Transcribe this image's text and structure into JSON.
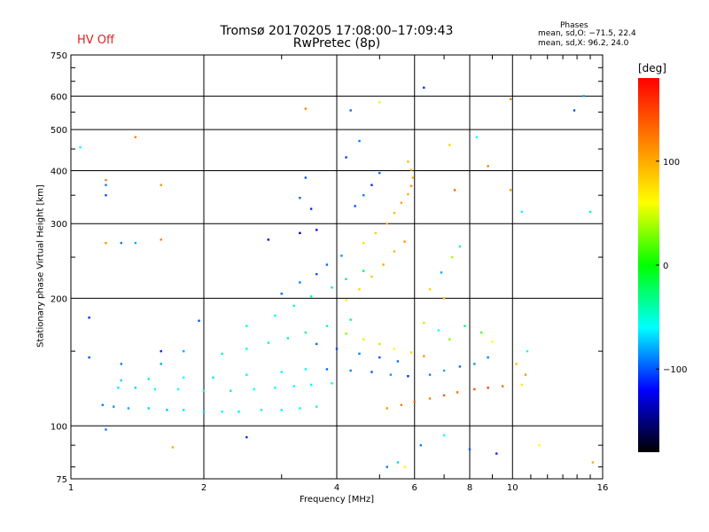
{
  "header": {
    "title_line1": "Tromsø 20170205 17:08:00–17:09:43",
    "title_line2": "RwPretec (8p)",
    "status": "HV Off",
    "phases_title": "Phases",
    "stat_o": "mean, sd,O: −71.5, 22.4",
    "stat_x": "mean, sd,X:  96.2, 24.0"
  },
  "colors": {
    "status": "#dd2222",
    "colorbar_stops": [
      "#ff0000",
      "#ff8000",
      "#ffff00",
      "#00ff00",
      "#00ffff",
      "#0000ff",
      "#000000"
    ]
  },
  "chart_data": {
    "type": "scatter",
    "xlabel": "Frequency [MHz]",
    "ylabel": "Stationary phase Virtual Height [km]",
    "x_scale": "log",
    "y_scale": "log",
    "xlim": [
      1,
      16
    ],
    "ylim": [
      75,
      750
    ],
    "x_ticks": [
      1,
      2,
      4,
      6,
      8,
      10,
      16
    ],
    "x_tick_labels": [
      "1",
      "2",
      "4",
      "6",
      "8",
      "10",
      "16"
    ],
    "y_ticks": [
      75,
      100,
      200,
      300,
      400,
      500,
      600,
      750
    ],
    "y_tick_labels": [
      "75",
      "100",
      "200",
      "300",
      "400",
      "500",
      "600",
      "750"
    ],
    "grid": true,
    "colorbar": {
      "unit": "[deg]",
      "range": [
        -180,
        180
      ],
      "ticks": [
        100,
        0,
        -100
      ],
      "tick_labels": [
        "100",
        "0",
        "−100"
      ]
    },
    "series": [
      {
        "points": [
          [
            1.18,
            112,
            -90
          ],
          [
            1.25,
            111,
            -85
          ],
          [
            1.35,
            110,
            -80
          ],
          [
            1.5,
            110,
            -70
          ],
          [
            1.65,
            109,
            -75
          ],
          [
            1.8,
            109,
            -65
          ],
          [
            2.0,
            108,
            -70
          ],
          [
            2.2,
            108,
            -60
          ],
          [
            2.4,
            108,
            -65
          ],
          [
            2.7,
            109,
            -55
          ],
          [
            3.0,
            109,
            -60
          ],
          [
            3.3,
            110,
            -55
          ],
          [
            3.6,
            111,
            -50
          ],
          [
            1.28,
            123,
            -65
          ],
          [
            1.4,
            123,
            -70
          ],
          [
            1.55,
            122,
            -60
          ],
          [
            1.75,
            122,
            -60
          ],
          [
            2.0,
            121,
            -55
          ],
          [
            2.3,
            121,
            -65
          ],
          [
            2.6,
            122,
            -60
          ],
          [
            2.9,
            123,
            -55
          ],
          [
            3.2,
            124,
            -60
          ],
          [
            3.5,
            125,
            -50
          ],
          [
            3.9,
            126,
            -55
          ],
          [
            1.3,
            128,
            -70
          ],
          [
            1.5,
            129,
            -65
          ],
          [
            1.8,
            130,
            -60
          ],
          [
            2.1,
            130,
            -65
          ],
          [
            2.5,
            132,
            -55
          ],
          [
            3.0,
            134,
            -60
          ],
          [
            3.4,
            136,
            -55
          ],
          [
            2.2,
            148,
            -45
          ],
          [
            2.5,
            152,
            -50
          ],
          [
            2.8,
            157,
            -45
          ],
          [
            3.1,
            161,
            -40
          ],
          [
            3.4,
            166,
            -35
          ],
          [
            3.8,
            172,
            -40
          ],
          [
            4.3,
            178,
            -30
          ],
          [
            2.5,
            172,
            -55
          ],
          [
            2.9,
            182,
            -50
          ],
          [
            3.2,
            192,
            -45
          ],
          [
            3.5,
            202,
            -40
          ],
          [
            3.9,
            212,
            -35
          ],
          [
            4.2,
            222,
            -30
          ],
          [
            4.6,
            232,
            -20
          ],
          [
            3.0,
            205,
            -95
          ],
          [
            3.3,
            218,
            -90
          ],
          [
            3.6,
            228,
            -100
          ],
          [
            3.8,
            240,
            -95
          ],
          [
            4.1,
            252,
            -85
          ],
          [
            3.8,
            136,
            -95
          ],
          [
            4.3,
            135,
            -90
          ],
          [
            4.8,
            134,
            -100
          ],
          [
            5.3,
            132,
            -85
          ],
          [
            5.8,
            131,
            -110
          ],
          [
            3.6,
            156,
            -95
          ],
          [
            4.0,
            152,
            -105
          ],
          [
            4.5,
            148,
            -90
          ],
          [
            5.0,
            145,
            -100
          ],
          [
            5.5,
            142,
            -95
          ],
          [
            4.2,
            165,
            30
          ],
          [
            4.6,
            160,
            50
          ],
          [
            5.0,
            156,
            40
          ],
          [
            5.4,
            152,
            60
          ],
          [
            5.9,
            149,
            80
          ],
          [
            6.3,
            146,
            110
          ],
          [
            4.2,
            198,
            70
          ],
          [
            4.5,
            210,
            80
          ],
          [
            4.8,
            225,
            90
          ],
          [
            5.1,
            240,
            100
          ],
          [
            5.4,
            258,
            95
          ],
          [
            5.7,
            272,
            110
          ],
          [
            4.6,
            270,
            75
          ],
          [
            4.9,
            285,
            85
          ],
          [
            5.2,
            300,
            90
          ],
          [
            5.4,
            318,
            95
          ],
          [
            5.6,
            336,
            105
          ],
          [
            5.8,
            352,
            100
          ],
          [
            5.9,
            368,
            110
          ],
          [
            5.95,
            385,
            100
          ],
          [
            5.9,
            402,
            90
          ],
          [
            5.8,
            420,
            95
          ],
          [
            4.4,
            330,
            -100
          ],
          [
            4.6,
            350,
            -90
          ],
          [
            4.8,
            370,
            -110
          ],
          [
            5.0,
            395,
            -95
          ],
          [
            4.5,
            470,
            -90
          ],
          [
            4.2,
            430,
            -105
          ],
          [
            3.3,
            345,
            -95
          ],
          [
            3.4,
            385,
            -100
          ],
          [
            3.6,
            290,
            -120
          ],
          [
            3.5,
            325,
            -110
          ],
          [
            5.2,
            110,
            110
          ],
          [
            5.6,
            112,
            120
          ],
          [
            6.0,
            114,
            130
          ],
          [
            6.5,
            116,
            120
          ],
          [
            7.0,
            118,
            140
          ],
          [
            7.5,
            120,
            130
          ],
          [
            8.2,
            122,
            140
          ],
          [
            8.8,
            123,
            150
          ],
          [
            9.5,
            124,
            130
          ],
          [
            6.5,
            132,
            -90
          ],
          [
            7.0,
            135,
            -80
          ],
          [
            7.6,
            138,
            -95
          ],
          [
            8.2,
            140,
            -85
          ],
          [
            8.8,
            145,
            -90
          ],
          [
            6.3,
            175,
            40
          ],
          [
            6.8,
            168,
            -60
          ],
          [
            7.2,
            160,
            30
          ],
          [
            7.8,
            172,
            -30
          ],
          [
            8.5,
            166,
            20
          ],
          [
            9.0,
            158,
            60
          ],
          [
            6.5,
            210,
            80
          ],
          [
            7.0,
            200,
            90
          ],
          [
            7.3,
            250,
            40
          ],
          [
            7.6,
            265,
            -40
          ],
          [
            6.9,
            230,
            -80
          ],
          [
            10.2,
            140,
            90
          ],
          [
            10.7,
            132,
            110
          ],
          [
            10.8,
            150,
            -60
          ],
          [
            10.5,
            125,
            70
          ],
          [
            6.2,
            90,
            -90
          ],
          [
            7.0,
            95,
            -60
          ],
          [
            8.0,
            88,
            -100
          ],
          [
            9.2,
            86,
            -110
          ],
          [
            11.5,
            90,
            60
          ],
          [
            15.2,
            82,
            100
          ],
          [
            5.2,
            80,
            -90
          ],
          [
            5.5,
            82,
            -70
          ],
          [
            5.7,
            80,
            60
          ],
          [
            2.5,
            94,
            -110
          ],
          [
            1.7,
            89,
            100
          ],
          [
            1.2,
            98,
            -90
          ],
          [
            6.3,
            628,
            -110
          ],
          [
            9.9,
            590,
            120
          ],
          [
            13.8,
            555,
            -100
          ],
          [
            14.5,
            600,
            -80
          ],
          [
            4.3,
            555,
            -95
          ],
          [
            5.0,
            580,
            50
          ],
          [
            3.4,
            560,
            120
          ],
          [
            1.05,
            454,
            -60
          ],
          [
            1.4,
            480,
            120
          ],
          [
            1.2,
            380,
            120
          ],
          [
            1.2,
            370,
            -90
          ],
          [
            1.2,
            350,
            -100
          ],
          [
            1.6,
            370,
            110
          ],
          [
            1.2,
            270,
            110
          ],
          [
            1.3,
            270,
            -90
          ],
          [
            1.6,
            275,
            120
          ],
          [
            1.4,
            270,
            -80
          ],
          [
            2.8,
            275,
            -130
          ],
          [
            3.3,
            285,
            -140
          ],
          [
            7.2,
            460,
            80
          ],
          [
            7.4,
            360,
            130
          ],
          [
            8.3,
            480,
            -60
          ],
          [
            8.8,
            410,
            120
          ],
          [
            9.9,
            360,
            110
          ],
          [
            10.5,
            320,
            -60
          ],
          [
            15.0,
            320,
            -40
          ],
          [
            1.6,
            150,
            -110
          ],
          [
            1.8,
            150,
            -80
          ],
          [
            1.1,
            180,
            -110
          ],
          [
            1.1,
            145,
            -100
          ],
          [
            1.3,
            140,
            -90
          ],
          [
            1.95,
            177,
            -100
          ],
          [
            1.6,
            140,
            -80
          ]
        ]
      }
    ]
  }
}
